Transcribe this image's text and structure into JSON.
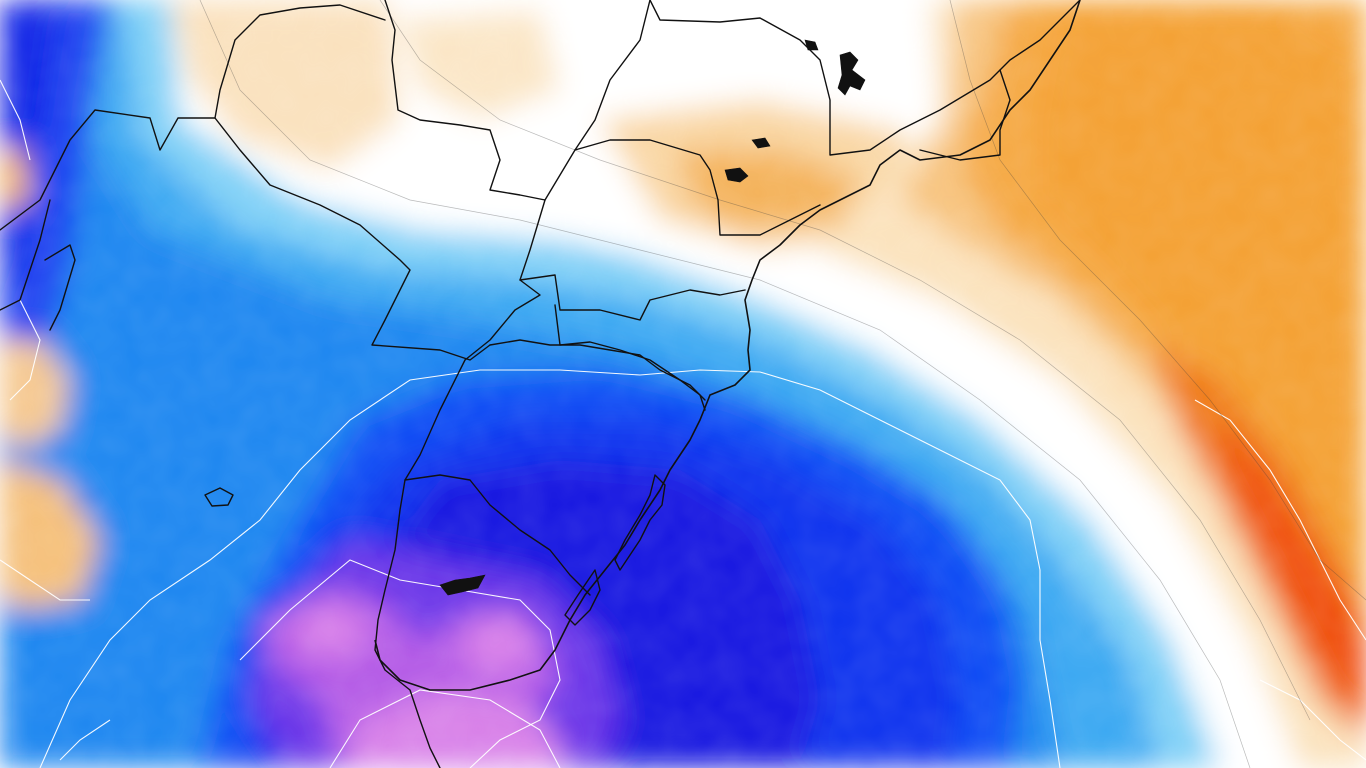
{
  "map": {
    "colors": {
      "deep_blue": "#1010e0",
      "blue": "#0a50f5",
      "mid_blue": "#1e90f0",
      "light_blue": "#6cc8f5",
      "pale_blue": "#c8ecfb",
      "white": "#ffffff",
      "pale_orange": "#fbe3c0",
      "light_orange": "#f7c684",
      "orange": "#f5a83a",
      "dark_orange": "#f27a10",
      "red_orange": "#f04a0a",
      "violet": "#7a3ae8",
      "magenta": "#d878e8",
      "border": "#111111",
      "contour": "#ffffff"
    }
  }
}
